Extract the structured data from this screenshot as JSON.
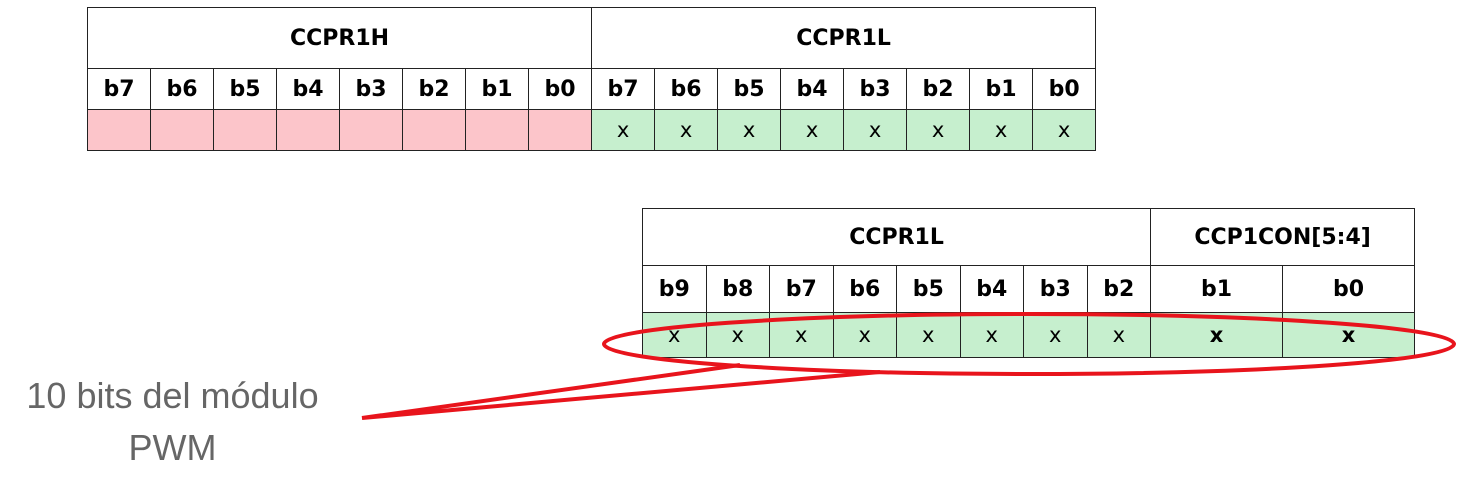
{
  "top_register": {
    "high_label": "CCPR1H",
    "low_label": "CCPR1L",
    "high_bits": [
      "b7",
      "b6",
      "b5",
      "b4",
      "b3",
      "b2",
      "b1",
      "b0"
    ],
    "low_bits": [
      "b7",
      "b6",
      "b5",
      "b4",
      "b3",
      "b2",
      "b1",
      "b0"
    ],
    "high_values": [
      "",
      "",
      "",
      "",
      "",
      "",
      "",
      ""
    ],
    "low_values": [
      "x",
      "x",
      "x",
      "x",
      "x",
      "x",
      "x",
      "x"
    ]
  },
  "bottom_register": {
    "ccpr1l_label": "CCPR1L",
    "ccp1con_label": "CCP1CON[5:4]",
    "ccpr1l_bits": [
      "b9",
      "b8",
      "b7",
      "b6",
      "b5",
      "b4",
      "b3",
      "b2"
    ],
    "ccp1con_bits": [
      "b1",
      "b0"
    ],
    "ccpr1l_values": [
      "x",
      "x",
      "x",
      "x",
      "x",
      "x",
      "x",
      "x"
    ],
    "ccp1con_values": [
      "x",
      "x"
    ]
  },
  "callout": {
    "line1": "10 bits del módulo",
    "line2": "PWM"
  },
  "colors": {
    "unused_bits": "#fcc5ca",
    "used_bits": "#c6efce",
    "highlight": "#e8141c",
    "callout_text": "#666666"
  }
}
